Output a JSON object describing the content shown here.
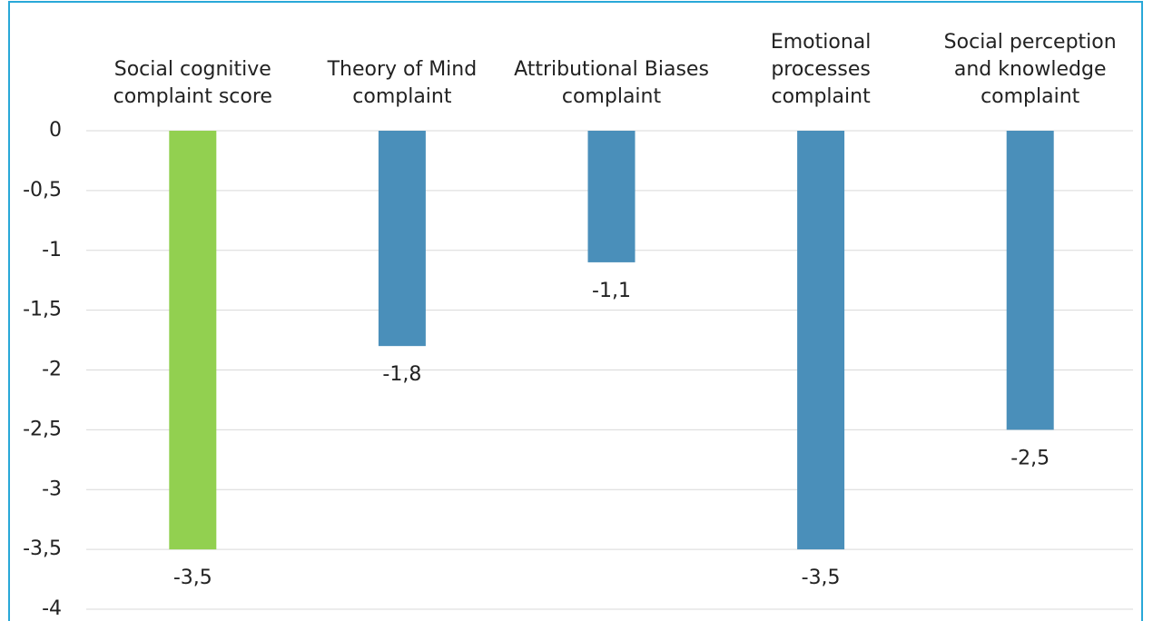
{
  "chart_data": {
    "type": "bar",
    "categories": [
      "Social cognitive complaint score",
      "Theory of Mind complaint",
      "Attributional Biases complaint",
      "Emotional processes complaint",
      "Social perception and knowledge complaint"
    ],
    "values": [
      -3.5,
      -1.8,
      -1.1,
      -3.5,
      -2.5
    ],
    "value_labels": [
      "-3,5",
      "-1,8",
      "-1,1",
      "-3,5",
      "-2,5"
    ],
    "colors": [
      "#92d050",
      "#4a8fba",
      "#4a8fba",
      "#4a8fba",
      "#4a8fba"
    ],
    "ylim": [
      -4,
      0
    ],
    "yticks": [
      0,
      {
        "value": -0.5,
        "label": "-0,5"
      },
      -1,
      {
        "value": -1.5,
        "label": "-1,5"
      },
      -2,
      {
        "value": -2.5,
        "label": "-2,5"
      },
      -3,
      {
        "value": -3.5,
        "label": "-3,5"
      },
      -4
    ],
    "grid": true
  }
}
